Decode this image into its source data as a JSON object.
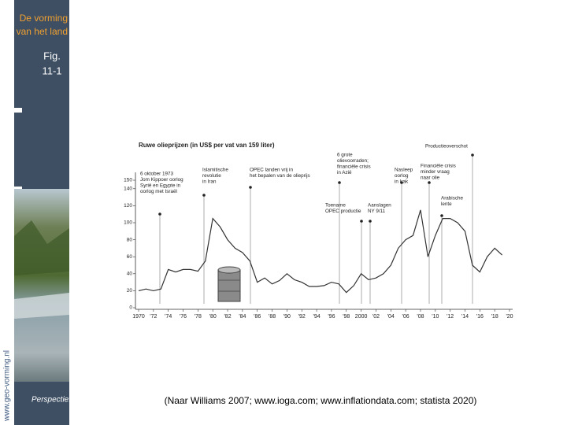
{
  "sidebar": {
    "brand": [
      "De vorming",
      "van het land"
    ],
    "fig": [
      "Fig.",
      "11-1"
    ],
    "url": "www.geo-vorming.nl",
    "logo": "Perspectief"
  },
  "chart_data": {
    "type": "line",
    "title": "Ruwe olieprijzen (in US$ per vat van 159 liter)",
    "x": [
      1970,
      1971,
      1972,
      1973,
      1974,
      1975,
      1976,
      1977,
      1978,
      1979,
      1980,
      1981,
      1982,
      1983,
      1984,
      1985,
      1986,
      1987,
      1988,
      1989,
      1990,
      1991,
      1992,
      1993,
      1994,
      1995,
      1996,
      1997,
      1998,
      1999,
      2000,
      2001,
      2002,
      2003,
      2004,
      2005,
      2006,
      2007,
      2008,
      2009,
      2010,
      2011,
      2012,
      2013,
      2014,
      2015,
      2016,
      2017,
      2018,
      2019
    ],
    "series": [
      {
        "name": "Ruwe olieprijs",
        "color": "#333333",
        "values": [
          20,
          22,
          20,
          22,
          45,
          42,
          45,
          45,
          43,
          55,
          105,
          95,
          80,
          70,
          65,
          55,
          30,
          35,
          28,
          32,
          40,
          33,
          30,
          25,
          25,
          26,
          30,
          28,
          18,
          26,
          40,
          33,
          35,
          40,
          50,
          70,
          80,
          85,
          115,
          60,
          85,
          105,
          105,
          100,
          90,
          50,
          42,
          60,
          70,
          62
        ]
      }
    ],
    "xlim": [
      1970,
      2020
    ],
    "xticks": [
      1970,
      {
        "value": 1972,
        "label": "'72"
      },
      {
        "value": 1974,
        "label": "'74"
      },
      {
        "value": 1976,
        "label": "'76"
      },
      {
        "value": 1978,
        "label": "'78"
      },
      {
        "value": 1980,
        "label": "'80"
      },
      {
        "value": 1982,
        "label": "'82"
      },
      {
        "value": 1984,
        "label": "'84"
      },
      {
        "value": 1986,
        "label": "'86"
      },
      {
        "value": 1988,
        "label": "'88"
      },
      {
        "value": 1990,
        "label": "'90"
      },
      {
        "value": 1992,
        "label": "'92"
      },
      {
        "value": 1994,
        "label": "'94"
      },
      {
        "value": 1996,
        "label": "'96"
      },
      {
        "value": 1998,
        "label": "'98"
      },
      2000,
      {
        "value": 2002,
        "label": "'02"
      },
      {
        "value": 2004,
        "label": "'04"
      },
      {
        "value": 2006,
        "label": "'06"
      },
      {
        "value": 2008,
        "label": "'08"
      },
      {
        "value": 2010,
        "label": "'10"
      },
      {
        "value": 2012,
        "label": "'12"
      },
      {
        "value": 2014,
        "label": "'14"
      },
      {
        "value": 2016,
        "label": "'16"
      },
      {
        "value": 2018,
        "label": "'18"
      },
      {
        "value": 2020,
        "label": "'20"
      }
    ],
    "ylim": [
      0,
      150
    ],
    "yticks": [
      0,
      20,
      40,
      60,
      80,
      100,
      120,
      140,
      150
    ],
    "annotations": [
      [
        "6 oktober 1973",
        "Jom Kippoer oorlog",
        "Syrië en Egypte in",
        "oorlog met Israël"
      ],
      [
        "Islamitische",
        "revolutie",
        "in Iran"
      ],
      [
        "OPEC landen vrij in",
        "het bepalen van de olieprijs"
      ],
      [
        "6 grote",
        "olievoorraden;",
        "financiële crisis",
        "in Azië"
      ],
      [
        "Toename",
        "OPEC productie"
      ],
      [
        "Aanslagen",
        "NY 9/11"
      ],
      [
        "Nasleep",
        "oorlog",
        "in Irak"
      ],
      [
        "Financiële crisis",
        "minder vraag",
        "naar olie"
      ],
      [
        "Arabische",
        "lente"
      ],
      [
        "Productieoverschot"
      ]
    ]
  },
  "source": "(Naar  Williams 2007; www.ioga.com; www.inflationdata.com; statista 2020)"
}
